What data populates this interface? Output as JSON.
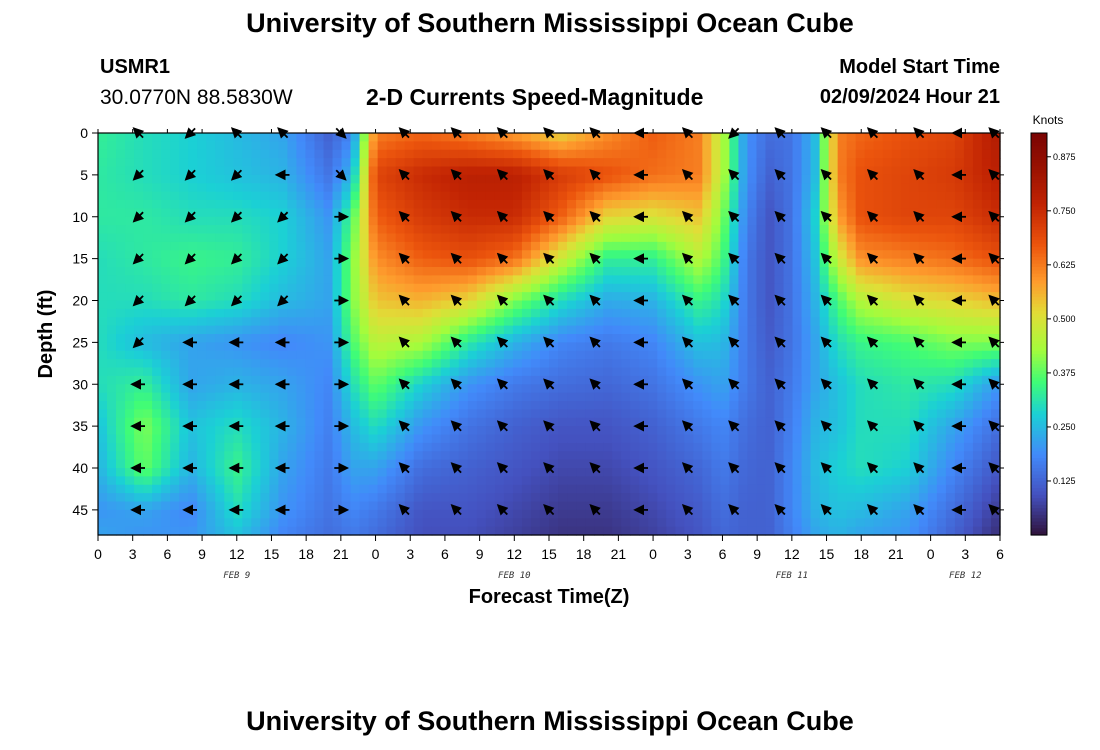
{
  "header": {
    "title": "University of Southern Mississippi Ocean Cube",
    "station_id": "USMR1",
    "station_coords": "30.0770N  88.5830W",
    "chart_title": "2-D Currents Speed-Magnitude",
    "model_label": "Model Start Time",
    "model_value": "02/09/2024 Hour 21"
  },
  "footer": {
    "title": "University of Southern Mississippi Ocean Cube"
  },
  "chart_data": {
    "type": "heatmap",
    "title": "2-D Currents Speed-Magnitude",
    "xlabel": "Forecast Time(Z)",
    "ylabel": "Depth (ft)",
    "x_ticks": [
      "0",
      "3",
      "6",
      "9",
      "12",
      "15",
      "18",
      "21",
      "0",
      "3",
      "6",
      "9",
      "12",
      "15",
      "18",
      "21",
      "0",
      "3",
      "6",
      "9",
      "12",
      "15",
      "18",
      "21",
      "0",
      "3",
      "6"
    ],
    "x_range_hours": [
      0,
      78
    ],
    "date_labels": [
      {
        "label": "FEB 9",
        "hour": 12
      },
      {
        "label": "FEB 10",
        "hour": 36
      },
      {
        "label": "FEB 11",
        "hour": 60
      },
      {
        "label": "FEB 12",
        "hour": 75
      }
    ],
    "y_ticks": [
      0,
      5,
      10,
      15,
      20,
      25,
      30,
      35,
      40,
      45
    ],
    "ylim": [
      0,
      48
    ],
    "colorbar": {
      "unit": "Knots",
      "ticks": [
        "0.875",
        "0.750",
        "0.625",
        "0.500",
        "0.375",
        "0.250",
        "0.125"
      ],
      "tick_values": [
        0.875,
        0.75,
        0.625,
        0.5,
        0.375,
        0.25,
        0.125
      ],
      "range": [
        0,
        0.93
      ]
    },
    "speed_grid_knots": {
      "hours": [
        0,
        4,
        8,
        12,
        16,
        20,
        22,
        24,
        28,
        32,
        36,
        40,
        44,
        48,
        52,
        54,
        56,
        58,
        60,
        62,
        64,
        66,
        70,
        74,
        78
      ],
      "depths_ft": [
        0,
        5,
        10,
        15,
        20,
        25,
        30,
        35,
        40,
        45,
        48
      ],
      "rows": [
        [
          0.33,
          0.3,
          0.28,
          0.25,
          0.22,
          0.12,
          0.18,
          0.62,
          0.65,
          0.62,
          0.58,
          0.52,
          0.6,
          0.66,
          0.62,
          0.45,
          0.2,
          0.14,
          0.15,
          0.25,
          0.62,
          0.65,
          0.68,
          0.7,
          0.8
        ],
        [
          0.32,
          0.3,
          0.28,
          0.26,
          0.24,
          0.15,
          0.25,
          0.7,
          0.75,
          0.78,
          0.78,
          0.72,
          0.68,
          0.64,
          0.62,
          0.45,
          0.2,
          0.12,
          0.15,
          0.25,
          0.62,
          0.68,
          0.7,
          0.72,
          0.78
        ],
        [
          0.32,
          0.32,
          0.3,
          0.3,
          0.28,
          0.2,
          0.36,
          0.66,
          0.72,
          0.75,
          0.75,
          0.66,
          0.52,
          0.5,
          0.54,
          0.4,
          0.18,
          0.1,
          0.15,
          0.28,
          0.58,
          0.68,
          0.7,
          0.7,
          0.75
        ],
        [
          0.3,
          0.32,
          0.34,
          0.33,
          0.28,
          0.22,
          0.4,
          0.6,
          0.66,
          0.68,
          0.64,
          0.48,
          0.33,
          0.33,
          0.45,
          0.36,
          0.16,
          0.1,
          0.15,
          0.26,
          0.48,
          0.6,
          0.62,
          0.64,
          0.68
        ],
        [
          0.3,
          0.3,
          0.32,
          0.3,
          0.25,
          0.22,
          0.4,
          0.54,
          0.56,
          0.52,
          0.4,
          0.3,
          0.23,
          0.24,
          0.34,
          0.3,
          0.16,
          0.1,
          0.15,
          0.24,
          0.36,
          0.45,
          0.5,
          0.52,
          0.55
        ],
        [
          0.3,
          0.25,
          0.22,
          0.2,
          0.18,
          0.2,
          0.36,
          0.46,
          0.44,
          0.32,
          0.24,
          0.18,
          0.16,
          0.18,
          0.26,
          0.25,
          0.16,
          0.11,
          0.15,
          0.22,
          0.3,
          0.34,
          0.36,
          0.4,
          0.4
        ],
        [
          0.3,
          0.33,
          0.22,
          0.24,
          0.22,
          0.18,
          0.3,
          0.38,
          0.28,
          0.2,
          0.16,
          0.14,
          0.13,
          0.15,
          0.2,
          0.22,
          0.16,
          0.12,
          0.16,
          0.22,
          0.26,
          0.3,
          0.32,
          0.3,
          0.2
        ],
        [
          0.26,
          0.4,
          0.26,
          0.3,
          0.24,
          0.17,
          0.25,
          0.3,
          0.2,
          0.15,
          0.12,
          0.1,
          0.1,
          0.12,
          0.16,
          0.18,
          0.14,
          0.12,
          0.17,
          0.24,
          0.26,
          0.3,
          0.3,
          0.22,
          0.14
        ],
        [
          0.24,
          0.38,
          0.24,
          0.34,
          0.22,
          0.16,
          0.22,
          0.22,
          0.14,
          0.12,
          0.1,
          0.08,
          0.08,
          0.1,
          0.13,
          0.16,
          0.13,
          0.12,
          0.18,
          0.25,
          0.28,
          0.3,
          0.28,
          0.18,
          0.1
        ],
        [
          0.2,
          0.22,
          0.18,
          0.3,
          0.2,
          0.15,
          0.18,
          0.16,
          0.1,
          0.1,
          0.08,
          0.06,
          0.06,
          0.08,
          0.11,
          0.14,
          0.12,
          0.12,
          0.18,
          0.24,
          0.26,
          0.25,
          0.22,
          0.14,
          0.06
        ],
        [
          0.22,
          0.2,
          0.2,
          0.26,
          0.18,
          0.14,
          0.16,
          0.14,
          0.09,
          0.09,
          0.07,
          0.05,
          0.05,
          0.07,
          0.1,
          0.13,
          0.12,
          0.12,
          0.17,
          0.22,
          0.24,
          0.22,
          0.2,
          0.12,
          0.04
        ]
      ]
    },
    "vector_arrows": {
      "hours": [
        3.5,
        8,
        12,
        16,
        21,
        26.5,
        31,
        35,
        39,
        43,
        47,
        51,
        55,
        59,
        63,
        67,
        71,
        74.5,
        77.5
      ],
      "depths_ft": [
        0,
        5,
        10,
        15,
        20,
        25,
        30,
        35,
        40,
        45
      ],
      "directions_deg": [
        [
          315,
          225,
          315,
          315,
          135,
          315,
          315,
          315,
          315,
          315,
          270,
          315,
          225,
          315,
          315,
          315,
          315,
          270,
          315
        ],
        [
          225,
          225,
          225,
          270,
          135,
          315,
          315,
          315,
          315,
          315,
          270,
          315,
          315,
          315,
          315,
          315,
          315,
          270,
          315
        ],
        [
          225,
          225,
          225,
          225,
          90,
          315,
          315,
          315,
          315,
          315,
          270,
          315,
          315,
          315,
          315,
          315,
          315,
          270,
          315
        ],
        [
          225,
          225,
          225,
          225,
          90,
          315,
          315,
          315,
          315,
          315,
          270,
          315,
          315,
          315,
          315,
          315,
          315,
          270,
          315
        ],
        [
          225,
          225,
          225,
          225,
          90,
          315,
          315,
          315,
          315,
          315,
          270,
          315,
          315,
          315,
          315,
          315,
          315,
          270,
          315
        ],
        [
          225,
          270,
          270,
          270,
          90,
          315,
          315,
          315,
          315,
          315,
          270,
          315,
          315,
          315,
          315,
          315,
          315,
          270,
          315
        ],
        [
          270,
          270,
          270,
          270,
          90,
          315,
          315,
          315,
          315,
          315,
          270,
          315,
          315,
          315,
          315,
          315,
          315,
          270,
          315
        ],
        [
          270,
          270,
          270,
          270,
          90,
          315,
          315,
          315,
          315,
          315,
          270,
          315,
          315,
          315,
          315,
          315,
          315,
          270,
          315
        ],
        [
          270,
          270,
          270,
          270,
          90,
          315,
          315,
          315,
          315,
          315,
          270,
          315,
          315,
          315,
          315,
          315,
          315,
          270,
          315
        ],
        [
          270,
          270,
          270,
          270,
          90,
          315,
          315,
          315,
          315,
          315,
          270,
          315,
          315,
          315,
          315,
          315,
          315,
          270,
          315
        ]
      ]
    }
  }
}
